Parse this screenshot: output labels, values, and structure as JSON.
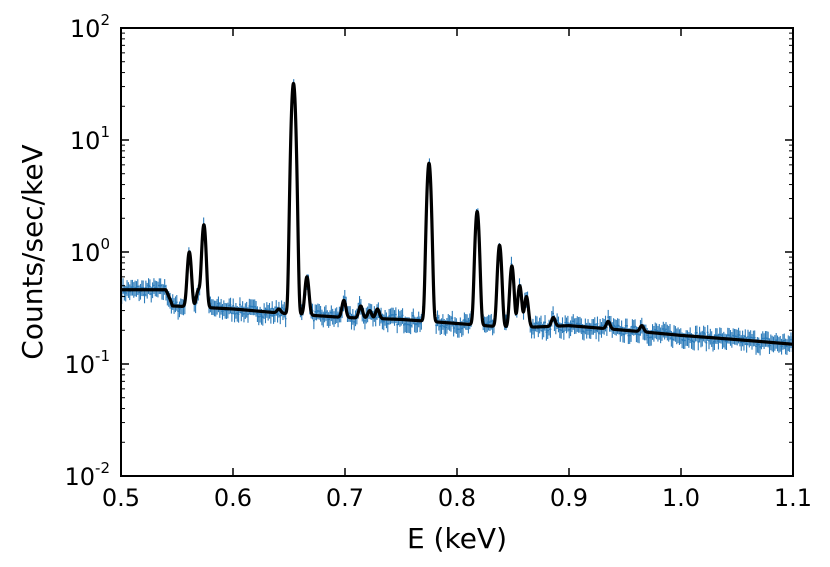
{
  "chart_data": {
    "type": "line",
    "xlabel": "E (keV)",
    "ylabel": "Counts/sec/keV",
    "xlim": [
      0.5,
      1.1
    ],
    "ylim": [
      0.01,
      100
    ],
    "yscale": "log",
    "x_ticks": [
      {
        "value": 0.5,
        "label": "0.5"
      },
      {
        "value": 0.6,
        "label": "0.6"
      },
      {
        "value": 0.7,
        "label": "0.7"
      },
      {
        "value": 0.8,
        "label": "0.8"
      },
      {
        "value": 0.9,
        "label": "0.9"
      },
      {
        "value": 1.0,
        "label": "1.0"
      },
      {
        "value": 1.1,
        "label": "1.1"
      }
    ],
    "y_ticks": [
      {
        "value": 0.01,
        "base": "10",
        "exp": "-2"
      },
      {
        "value": 0.1,
        "base": "10",
        "exp": "-1"
      },
      {
        "value": 1,
        "base": "10",
        "exp": "0"
      },
      {
        "value": 10,
        "base": "10",
        "exp": "1"
      },
      {
        "value": 100,
        "base": "10",
        "exp": "2"
      }
    ],
    "colors": {
      "data": "#2b7bba",
      "model": "#000000"
    },
    "grid": false,
    "continuum": [
      {
        "x": 0.5,
        "y": 0.46
      },
      {
        "x": 0.54,
        "y": 0.46
      },
      {
        "x": 0.546,
        "y": 0.33
      },
      {
        "x": 0.6,
        "y": 0.31
      },
      {
        "x": 0.65,
        "y": 0.28
      },
      {
        "x": 0.7,
        "y": 0.26
      },
      {
        "x": 0.75,
        "y": 0.25
      },
      {
        "x": 0.8,
        "y": 0.23
      },
      {
        "x": 0.85,
        "y": 0.21
      },
      {
        "x": 0.9,
        "y": 0.22
      },
      {
        "x": 0.95,
        "y": 0.2
      },
      {
        "x": 1.0,
        "y": 0.18
      },
      {
        "x": 1.05,
        "y": 0.165
      },
      {
        "x": 1.1,
        "y": 0.15
      }
    ],
    "lines": [
      {
        "x": 0.561,
        "y": 1.0
      },
      {
        "x": 0.569,
        "y": 0.45
      },
      {
        "x": 0.574,
        "y": 1.75
      },
      {
        "x": 0.641,
        "y": 0.31
      },
      {
        "x": 0.654,
        "y": 32.0
      },
      {
        "x": 0.666,
        "y": 0.6
      },
      {
        "x": 0.699,
        "y": 0.37
      },
      {
        "x": 0.714,
        "y": 0.33
      },
      {
        "x": 0.722,
        "y": 0.3
      },
      {
        "x": 0.729,
        "y": 0.31
      },
      {
        "x": 0.775,
        "y": 6.2
      },
      {
        "x": 0.818,
        "y": 2.3
      },
      {
        "x": 0.838,
        "y": 1.15
      },
      {
        "x": 0.849,
        "y": 0.75
      },
      {
        "x": 0.856,
        "y": 0.5
      },
      {
        "x": 0.862,
        "y": 0.4
      },
      {
        "x": 0.886,
        "y": 0.26
      },
      {
        "x": 0.935,
        "y": 0.24
      },
      {
        "x": 0.965,
        "y": 0.22
      }
    ]
  }
}
